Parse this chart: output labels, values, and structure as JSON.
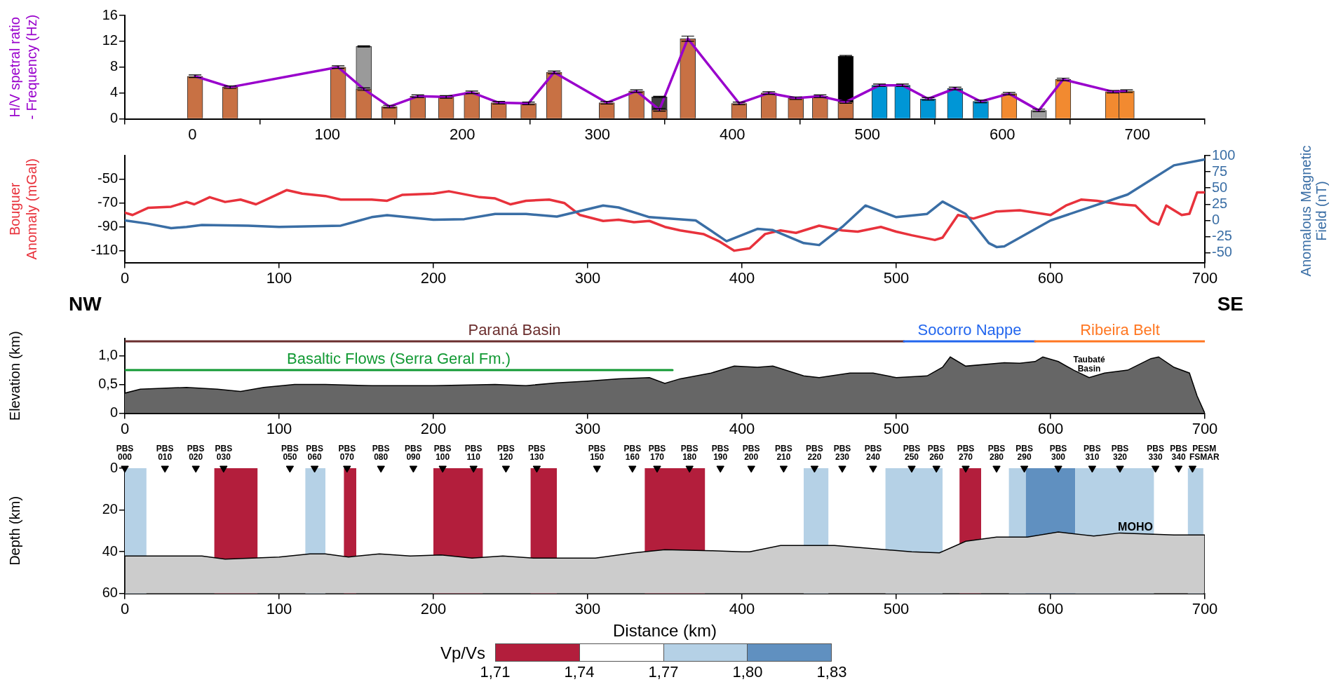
{
  "chart_data": [
    {
      "type": "bar",
      "ylabel": "H/V spetral ratio - Frequency (Hz)",
      "xlim": [
        0,
        700
      ],
      "xticks": [
        0,
        100,
        200,
        300,
        400,
        500,
        600,
        700
      ],
      "ylim": [
        0,
        16
      ],
      "yticks": [
        0,
        4,
        8,
        12,
        16
      ],
      "series": [
        {
          "type": "bar",
          "x": [
            127,
            346,
            484
          ],
          "values": [
            11.2,
            3.4,
            9.7
          ],
          "colors": [
            "#9a9a9a",
            "#404040",
            "#000000"
          ],
          "errors": [
            0.1,
            0.1,
            0.1
          ]
        },
        {
          "type": "bar",
          "x": [
            2,
            28,
            108,
            127,
            146,
            167,
            188,
            207,
            227,
            249,
            268,
            307,
            329,
            346,
            367,
            405,
            427,
            447,
            465,
            484,
            509,
            526,
            545,
            565,
            584,
            605,
            627,
            645,
            682,
            692
          ],
          "values": [
            6.6,
            4.9,
            8.0,
            4.6,
            1.9,
            3.5,
            3.4,
            4.1,
            2.5,
            2.4,
            7.2,
            2.5,
            4.3,
            1.4,
            12.4,
            2.4,
            4.0,
            3.2,
            3.5,
            2.6,
            5.2,
            5.2,
            3.1,
            4.7,
            2.7,
            3.9,
            1.3,
            6.1,
            4.2,
            4.3
          ],
          "colors": [
            "#c87144",
            "#c87144",
            "#c87144",
            "#c87144",
            "#c87144",
            "#c87144",
            "#c87144",
            "#c87144",
            "#c87144",
            "#c87144",
            "#c87144",
            "#c87144",
            "#c87144",
            "#c87144",
            "#c87144",
            "#c87144",
            "#c87144",
            "#c87144",
            "#c87144",
            "#c87144",
            "#0096d6",
            "#0096d6",
            "#0096d6",
            "#0096d6",
            "#0096d6",
            "#f28a30",
            "#a0a0a0",
            "#f28a30",
            "#f28a30",
            "#f28a30"
          ],
          "errors": [
            0.2,
            0.2,
            0.2,
            0.2,
            0.2,
            0.2,
            0.2,
            0.2,
            0.2,
            0.2,
            0.2,
            0.2,
            0.2,
            0.2,
            0.4,
            0.2,
            0.2,
            0.2,
            0.2,
            0.2,
            0.2,
            0.2,
            0.2,
            0.2,
            0.2,
            0.2,
            0.2,
            0.2,
            0.2,
            0.2
          ]
        },
        {
          "type": "line",
          "color": "#9900cc",
          "x": [
            2,
            28,
            108,
            127,
            146,
            167,
            188,
            207,
            227,
            249,
            268,
            307,
            329,
            346,
            367,
            405,
            427,
            447,
            465,
            484,
            509,
            526,
            545,
            565,
            584,
            605,
            627,
            645,
            682,
            692
          ],
          "values": [
            6.6,
            4.9,
            8.0,
            4.6,
            1.9,
            3.5,
            3.4,
            4.1,
            2.5,
            2.4,
            7.2,
            2.5,
            4.3,
            1.4,
            12.4,
            2.4,
            4.0,
            3.2,
            3.5,
            2.6,
            5.2,
            5.2,
            3.1,
            4.7,
            2.7,
            3.9,
            1.3,
            6.1,
            4.2,
            4.3
          ]
        }
      ]
    },
    {
      "type": "line",
      "ylabel": "Bouguer Anomaly (mGal)",
      "y2label": "Anomalous Magnetic Field (nT)",
      "xlim": [
        0,
        700
      ],
      "xticks": [
        0,
        100,
        200,
        300,
        400,
        500,
        600,
        700
      ],
      "ylim": [
        -120,
        -30
      ],
      "yticks": [
        -110,
        -90,
        -70,
        -50
      ],
      "y2lim": [
        -65,
        100
      ],
      "y2ticks": [
        -50,
        -25,
        0,
        25,
        50,
        75,
        100
      ],
      "series": [
        {
          "color": "#e8323c",
          "x": [
            0,
            5,
            15,
            30,
            40,
            45,
            55,
            65,
            75,
            85,
            95,
            105,
            115,
            130,
            140,
            160,
            170,
            180,
            200,
            210,
            230,
            240,
            250,
            260,
            275,
            285,
            295,
            310,
            320,
            330,
            340,
            350,
            360,
            375,
            385,
            395,
            405,
            415,
            425,
            435,
            450,
            465,
            475,
            490,
            500,
            510,
            525,
            530,
            540,
            550,
            565,
            580,
            600,
            610,
            620,
            630,
            645,
            655,
            665,
            670,
            675,
            685,
            690,
            695,
            700
          ],
          "values": [
            -78,
            -80,
            -74,
            -73,
            -69,
            -71,
            -65,
            -69,
            -67,
            -71,
            -65,
            -59,
            -62,
            -64,
            -67,
            -67,
            -68,
            -63,
            -62,
            -60,
            -65,
            -66,
            -71,
            -68,
            -67,
            -70,
            -80,
            -85,
            -84,
            -86,
            -85,
            -90,
            -93,
            -96,
            -102,
            -110,
            -108,
            -96,
            -93,
            -95,
            -89,
            -93,
            -94,
            -90,
            -94,
            -97,
            -101,
            -99,
            -80,
            -83,
            -77,
            -76,
            -80,
            -72,
            -67,
            -68,
            -71,
            -72,
            -85,
            -88,
            -72,
            -80,
            -79,
            -61,
            -61
          ]
        },
        {
          "color": "#3a6ea5",
          "axis": "y2",
          "x": [
            0,
            15,
            30,
            40,
            50,
            80,
            100,
            140,
            160,
            170,
            200,
            220,
            240,
            260,
            280,
            310,
            320,
            340,
            370,
            390,
            410,
            420,
            440,
            450,
            465,
            480,
            500,
            520,
            530,
            545,
            560,
            565,
            570,
            600,
            650,
            680,
            700
          ],
          "values": [
            0,
            -5,
            -12,
            -10,
            -7,
            -8,
            -10,
            -8,
            5,
            8,
            1,
            2,
            10,
            10,
            6,
            23,
            20,
            5,
            0,
            -32,
            -13,
            -15,
            -35,
            -38,
            -10,
            23,
            5,
            10,
            29,
            10,
            -35,
            -41,
            -40,
            0,
            40,
            85,
            94
          ]
        }
      ]
    },
    {
      "type": "area",
      "ylabel": "Elevation (km)",
      "annotations": [
        "NW",
        "SE",
        {
          "text": "Taubaté Basin",
          "x": 625,
          "y": 0.62
        }
      ],
      "xlim": [
        0,
        700
      ],
      "xticks": [
        0,
        100,
        200,
        300,
        400,
        500,
        600,
        700
      ],
      "ylim": [
        0,
        1.3
      ],
      "yticks": [
        {
          "value": 0,
          "label": "0"
        },
        {
          "value": 0.5,
          "label": "0,5"
        },
        {
          "value": 1,
          "label": "1,0"
        }
      ],
      "series": [
        {
          "color": "#666666",
          "x": [
            0,
            10,
            40,
            60,
            75,
            90,
            110,
            130,
            160,
            200,
            240,
            260,
            280,
            300,
            320,
            340,
            350,
            360,
            380,
            395,
            410,
            420,
            440,
            450,
            470,
            485,
            500,
            520,
            530,
            535,
            545,
            570,
            580,
            590,
            595,
            605,
            615,
            625,
            635,
            650,
            665,
            670,
            680,
            690,
            695,
            700
          ],
          "values": [
            0.35,
            0.42,
            0.45,
            0.42,
            0.38,
            0.45,
            0.5,
            0.5,
            0.48,
            0.48,
            0.5,
            0.48,
            0.53,
            0.56,
            0.6,
            0.62,
            0.52,
            0.6,
            0.7,
            0.82,
            0.8,
            0.82,
            0.65,
            0.62,
            0.7,
            0.7,
            0.62,
            0.65,
            0.8,
            0.98,
            0.82,
            0.88,
            0.87,
            0.9,
            0.98,
            0.9,
            0.75,
            0.62,
            0.7,
            0.75,
            0.95,
            0.98,
            0.8,
            0.7,
            0.3,
            0
          ]
        },
        {
          "type": "line",
          "name": "Paraná Basin",
          "color": "#6b2e2e",
          "x": [
            0,
            505
          ],
          "values": [
            1.25,
            1.25
          ]
        },
        {
          "type": "line",
          "name": "Socorro Nappe",
          "color": "#2266ee",
          "x": [
            505,
            590
          ],
          "values": [
            1.25,
            1.25
          ]
        },
        {
          "type": "line",
          "name": "Ribeira Belt",
          "color": "#ff7722",
          "x": [
            590,
            700
          ],
          "values": [
            1.25,
            1.25
          ]
        },
        {
          "type": "line",
          "name": "Basaltic Flows (Serra Geral Fm.)",
          "color": "#119933",
          "x": [
            0,
            355
          ],
          "values": [
            0.75,
            0.75
          ]
        }
      ]
    },
    {
      "type": "area",
      "ylabel": "Depth (km)",
      "xlabel": "Distance (km)",
      "annotations": [
        {
          "text": "MOHO",
          "x": 655,
          "y": 33
        }
      ],
      "xlim": [
        0,
        700
      ],
      "xticks": [
        0,
        100,
        200,
        300,
        400,
        500,
        600,
        700
      ],
      "ylim": [
        60,
        0
      ],
      "yticks": [
        0,
        20,
        40,
        60
      ],
      "clabel": "Vp/Vs",
      "clim": [
        1.71,
        1.83
      ],
      "cticks": [
        {
          "value": 1.71,
          "label": "1,71"
        },
        {
          "value": 1.74,
          "label": "1,74"
        },
        {
          "value": 1.77,
          "label": "1,77"
        },
        {
          "value": 1.8,
          "label": "1,80"
        },
        {
          "value": 1.83,
          "label": "1,83"
        }
      ],
      "colors": [
        "#b31e3c",
        "#ffffff",
        "#b5d1e6",
        "#6090c0"
      ],
      "bands": [
        {
          "axis": "x",
          "from": 0,
          "to": 14,
          "color": "#b5d1e6"
        },
        {
          "axis": "x",
          "from": 58,
          "to": 86,
          "color": "#b31e3c"
        },
        {
          "axis": "x",
          "from": 117,
          "to": 130,
          "color": "#b5d1e6"
        },
        {
          "axis": "x",
          "from": 142,
          "to": 150,
          "color": "#b31e3c"
        },
        {
          "axis": "x",
          "from": 200,
          "to": 232,
          "color": "#b31e3c"
        },
        {
          "axis": "x",
          "from": 263,
          "to": 280,
          "color": "#b31e3c"
        },
        {
          "axis": "x",
          "from": 337,
          "to": 376,
          "color": "#b31e3c"
        },
        {
          "axis": "x",
          "from": 440,
          "to": 456,
          "color": "#b5d1e6"
        },
        {
          "axis": "x",
          "from": 493,
          "to": 530,
          "color": "#b5d1e6"
        },
        {
          "axis": "x",
          "from": 541,
          "to": 555,
          "color": "#b31e3c"
        },
        {
          "axis": "x",
          "from": 573,
          "to": 584,
          "color": "#b5d1e6"
        },
        {
          "axis": "x",
          "from": 584,
          "to": 616,
          "color": "#6090c0"
        },
        {
          "axis": "x",
          "from": 616,
          "to": 667,
          "color": "#b5d1e6"
        },
        {
          "axis": "x",
          "from": 689,
          "to": 699,
          "color": "#b5d1e6"
        }
      ],
      "series": [
        {
          "color": "#cccccc",
          "x": [
            0,
            0,
            50,
            65,
            100,
            120,
            130,
            145,
            165,
            185,
            205,
            225,
            245,
            265,
            305,
            330,
            350,
            380,
            400,
            405,
            425,
            460,
            510,
            528,
            545,
            565,
            585,
            605,
            628,
            645,
            680,
            700,
            700
          ],
          "values": [
            60,
            42,
            42,
            43.5,
            42.5,
            41,
            41,
            42.5,
            41,
            42,
            41.5,
            43,
            42,
            43,
            43,
            40.5,
            39,
            39.5,
            40,
            40,
            37,
            37,
            40,
            40.5,
            35,
            33,
            33,
            30.5,
            32.5,
            31,
            32,
            32,
            60
          ]
        },
        {
          "type": "scatter",
          "color": "#000000",
          "marker": "triangle",
          "x": [
            0,
            26,
            46,
            64,
            107,
            123,
            144,
            166,
            187,
            206,
            226,
            247,
            267,
            306,
            329,
            345,
            366,
            386,
            406,
            427,
            447,
            465,
            485,
            510,
            526,
            545,
            565,
            583,
            605,
            627,
            645,
            668,
            683,
            692
          ],
          "values": [
            0,
            0,
            0,
            0,
            0,
            0,
            0,
            0,
            0,
            0,
            0,
            0,
            0,
            0,
            0,
            0,
            0,
            0,
            0,
            0,
            0,
            0,
            0,
            0,
            0,
            0,
            0,
            0,
            0,
            0,
            0,
            0,
            0,
            0
          ],
          "value_labels": [
            "PBS 000",
            "PBS 010",
            "PBS 020",
            "PBS 030",
            "PBS 050",
            "PBS 060",
            "PBS 070",
            "PBS 080",
            "PBS 090",
            "PBS 100",
            "PBS 110",
            "PBS 120",
            "PBS 130",
            "PBS 150",
            "PBS 160",
            "PBS 170",
            "PBS 180",
            "PBS 190",
            "PBS 200",
            "PBS 210",
            "PBS 220",
            "PBS 230",
            "PBS 240",
            "PBS 250",
            "PBS 260",
            "PBS 270",
            "PBS 280",
            "PBS 290",
            "PBS 300",
            "PBS 310",
            "PBS 320",
            "PBS 330",
            "PBS 340",
            "PESM FSMAR"
          ]
        }
      ]
    }
  ]
}
